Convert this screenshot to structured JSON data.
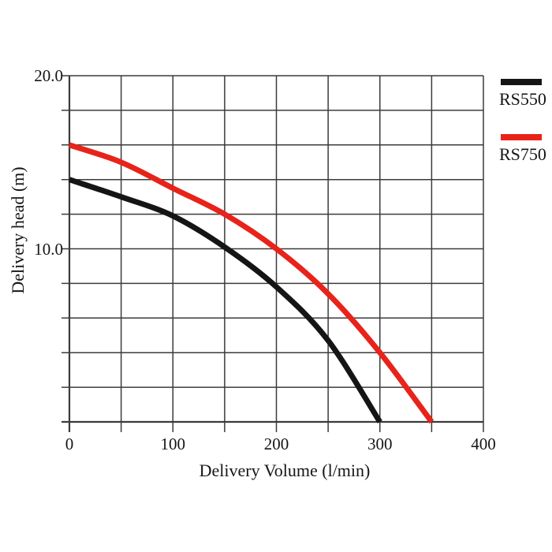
{
  "chart_data": {
    "type": "line",
    "title": "",
    "xlabel": "Delivery Volume (l/min)",
    "ylabel": "Delivery head (m)",
    "xlim": [
      0,
      400
    ],
    "ylim": [
      0,
      20
    ],
    "grid": true,
    "x_grid_step": 50,
    "y_grid_step": 2,
    "legend_position": "outside-top-right",
    "x_ticks": [
      {
        "value": 0,
        "label": "0"
      },
      {
        "value": 100,
        "label": "100"
      },
      {
        "value": 200,
        "label": "200"
      },
      {
        "value": 300,
        "label": "300"
      },
      {
        "value": 400,
        "label": "400"
      }
    ],
    "y_ticks": [
      {
        "value": 20,
        "label": "20.0"
      },
      {
        "value": 10,
        "label": "10.0"
      }
    ],
    "series": [
      {
        "name": "RS550",
        "color": "#151515",
        "points": [
          [
            0,
            14.0
          ],
          [
            50,
            13.0
          ],
          [
            100,
            11.9
          ],
          [
            150,
            10.1
          ],
          [
            200,
            7.8
          ],
          [
            250,
            4.7
          ],
          [
            300,
            0.0
          ]
        ]
      },
      {
        "name": "RS750",
        "color": "#e8231a",
        "points": [
          [
            0,
            16.0
          ],
          [
            50,
            15.0
          ],
          [
            100,
            13.5
          ],
          [
            150,
            12.0
          ],
          [
            200,
            10.0
          ],
          [
            250,
            7.4
          ],
          [
            300,
            4.0
          ],
          [
            350,
            0.0
          ]
        ]
      }
    ],
    "colors": {
      "grid": "#3b3b3b",
      "axis": "#2a2a2a",
      "background": "#ffffff",
      "text": "#151515"
    }
  }
}
